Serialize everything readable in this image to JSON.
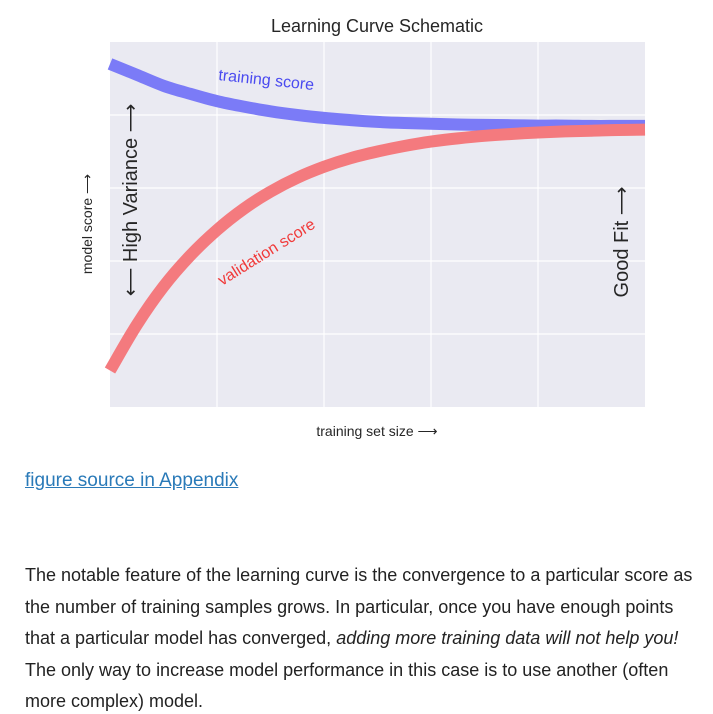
{
  "chart_data": {
    "type": "line",
    "title": "Learning Curve Schematic",
    "xlabel": "training set size ⟶",
    "ylabel": "model score ⟶",
    "xlim": [
      0,
      1
    ],
    "ylim": [
      0,
      1
    ],
    "grid": true,
    "x_ticks_shown": false,
    "y_ticks_shown": false,
    "annotations": [
      {
        "text": "⟵ High Variance ⟶",
        "region": "left"
      },
      {
        "text": "Good Fit ⟶",
        "region": "right"
      }
    ],
    "series": [
      {
        "name": "training score",
        "color": "#7b7bf7",
        "x": [
          0.0,
          0.05,
          0.1,
          0.15,
          0.2,
          0.25,
          0.3,
          0.35,
          0.4,
          0.45,
          0.5,
          0.55,
          0.6,
          0.65,
          0.7,
          0.75,
          0.8,
          0.85,
          0.9,
          0.95,
          1.0
        ],
        "y": [
          0.94,
          0.91,
          0.88,
          0.858,
          0.838,
          0.823,
          0.81,
          0.8,
          0.792,
          0.786,
          0.781,
          0.778,
          0.776,
          0.774,
          0.773,
          0.772,
          0.771,
          0.771,
          0.77,
          0.77,
          0.77
        ]
      },
      {
        "name": "validation score",
        "color": "#f47a7e",
        "x": [
          0.0,
          0.05,
          0.1,
          0.15,
          0.2,
          0.25,
          0.3,
          0.35,
          0.4,
          0.45,
          0.5,
          0.55,
          0.6,
          0.65,
          0.7,
          0.75,
          0.8,
          0.85,
          0.9,
          0.95,
          1.0
        ],
        "y": [
          0.1,
          0.225,
          0.33,
          0.415,
          0.485,
          0.543,
          0.59,
          0.628,
          0.658,
          0.682,
          0.7,
          0.715,
          0.727,
          0.736,
          0.743,
          0.748,
          0.752,
          0.755,
          0.757,
          0.759,
          0.76
        ]
      }
    ]
  },
  "link": {
    "text": "figure source in Appendix"
  },
  "paragraph": {
    "part1": "The notable feature of the learning curve is the convergence to a particular score as the number of training samples grows. In particular, once you have enough points that a particular model has converged, ",
    "emphasis": "adding more training data will not help you!",
    "part2": " The only way to increase model performance in this case is to use another (often more complex) model."
  }
}
